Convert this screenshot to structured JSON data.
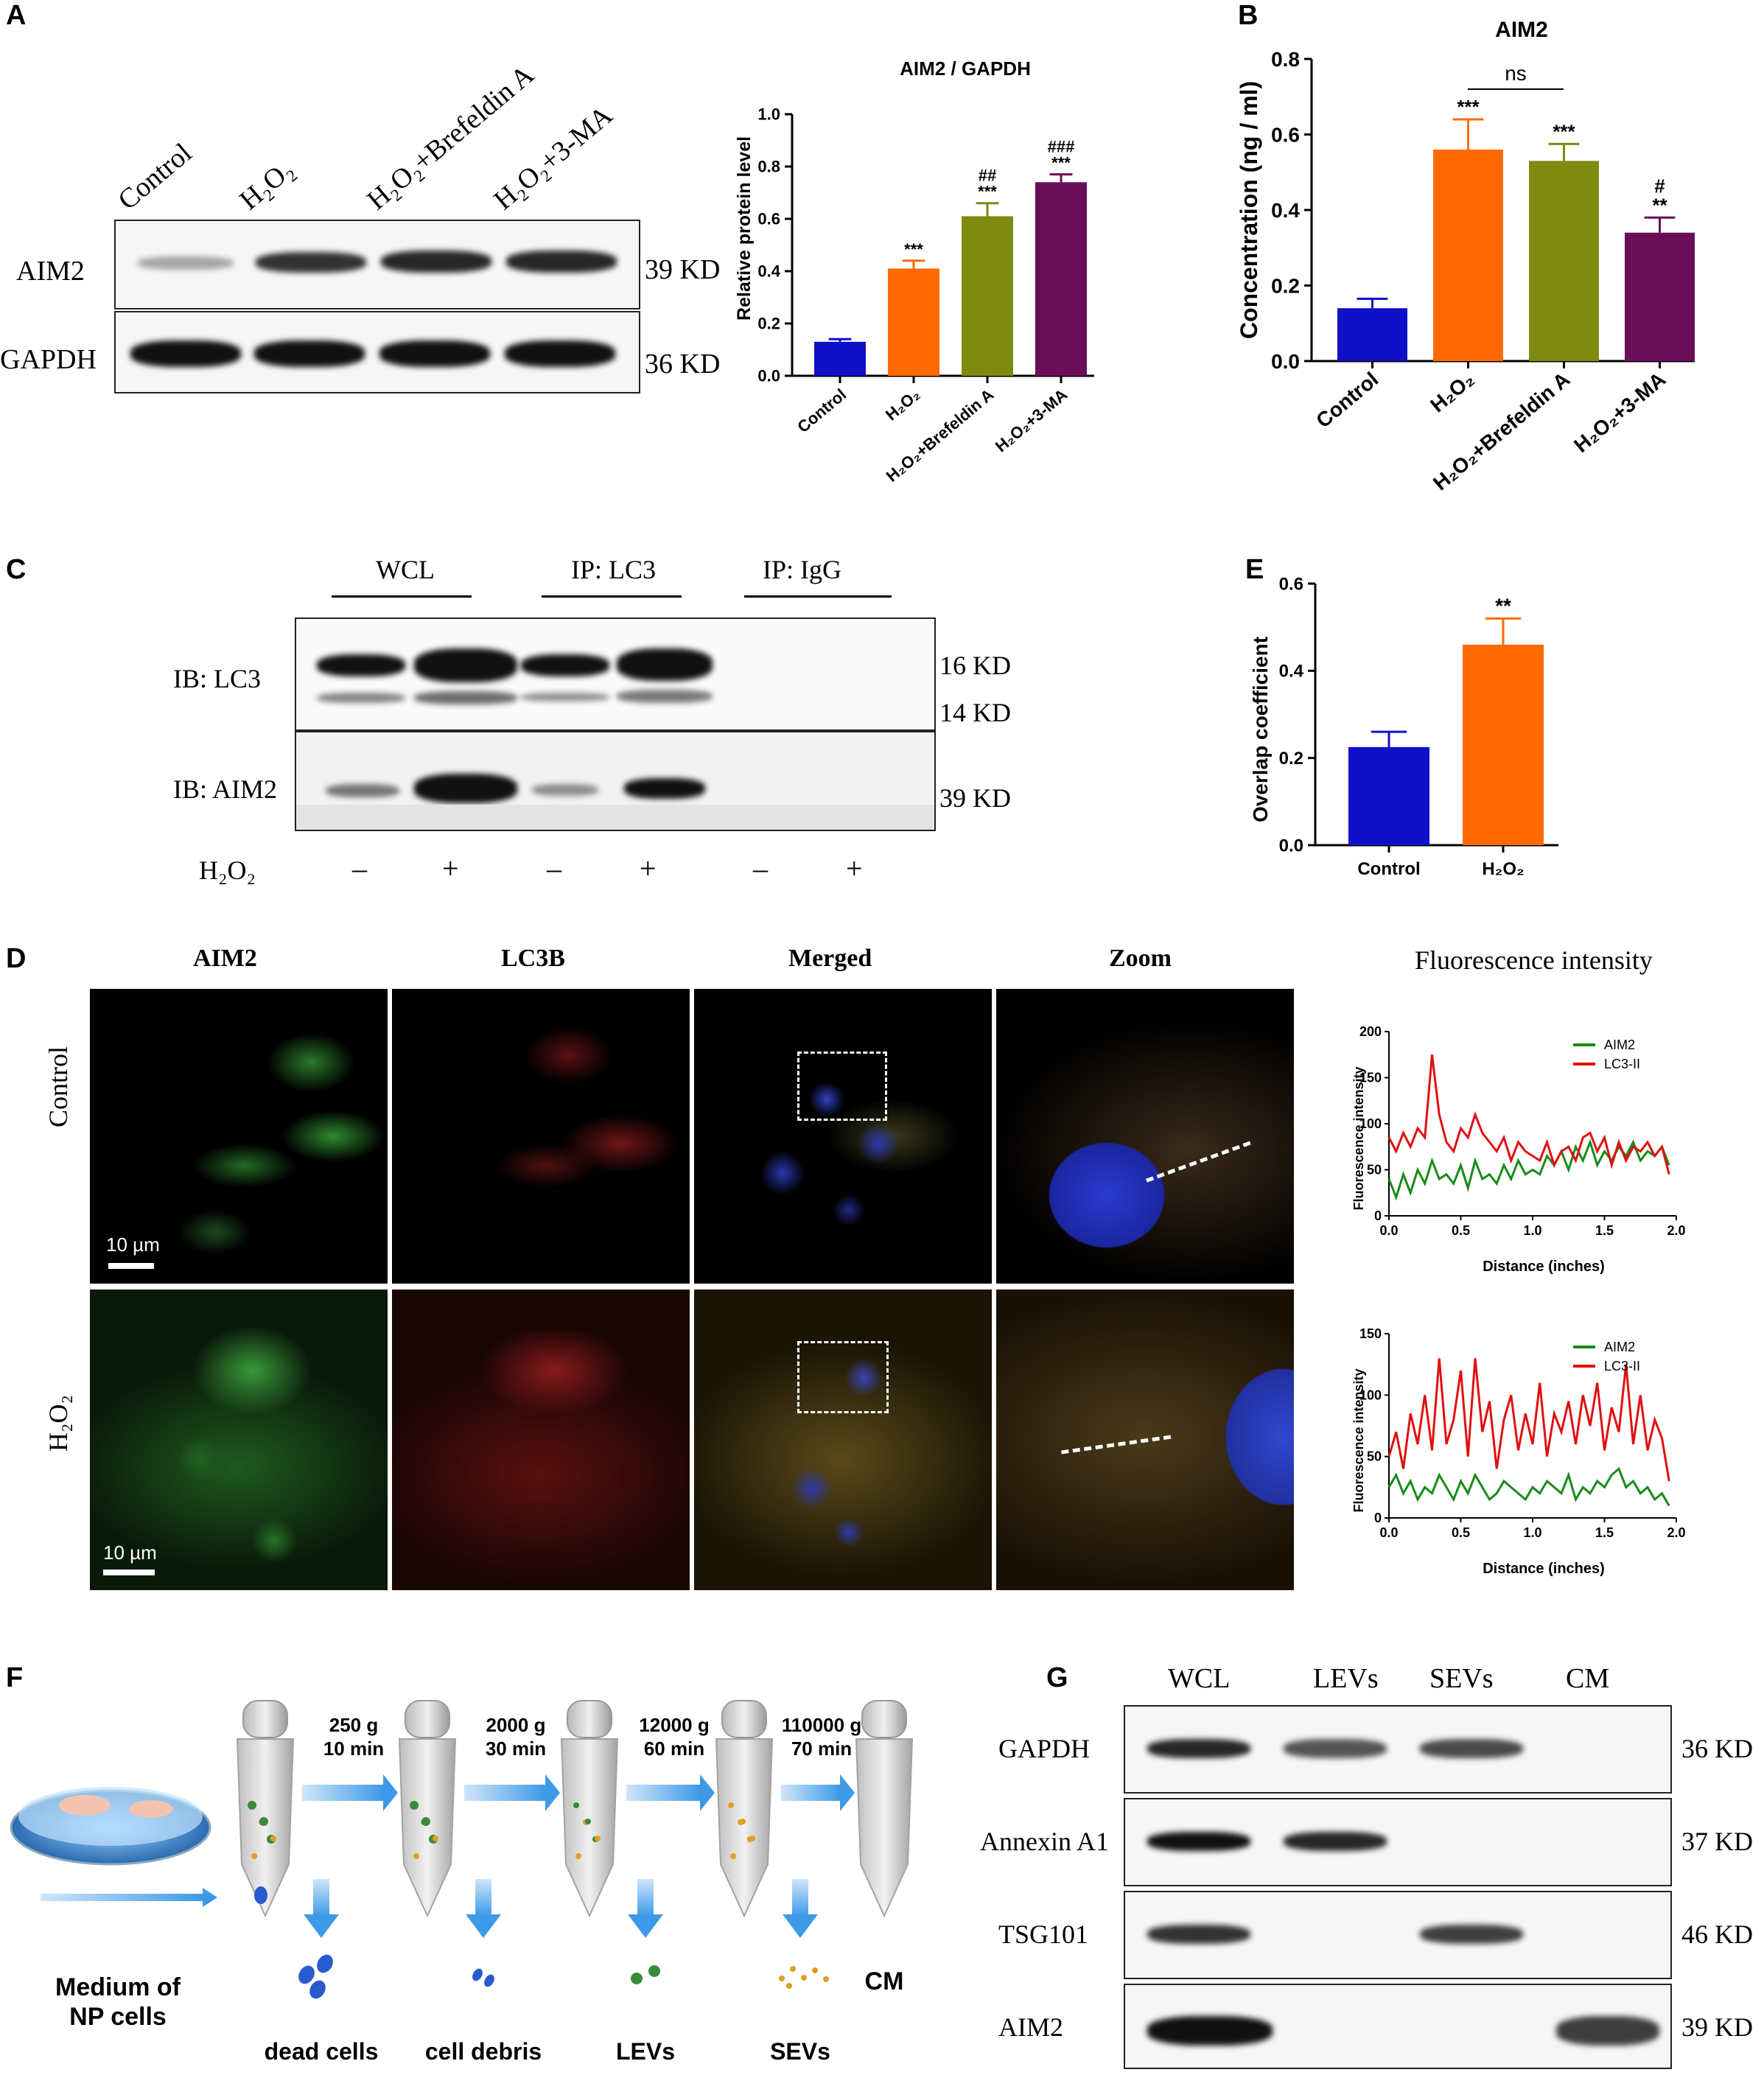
{
  "panels": {
    "A": "A",
    "B": "B",
    "C": "C",
    "D": "D",
    "E": "E",
    "F": "F",
    "G": "G"
  },
  "panelA": {
    "lane_labels": [
      "Control",
      "H₂O₂",
      "H₂O₂+Brefeldin A",
      "H₂O₂+3-MA"
    ],
    "rows": [
      {
        "name": "AIM2",
        "size": "39 KD",
        "intensity": [
          0.35,
          0.85,
          0.9,
          0.9
        ]
      },
      {
        "name": "GAPDH",
        "size": "36 KD",
        "intensity": [
          1,
          1,
          1,
          1
        ]
      }
    ]
  },
  "panelC": {
    "groups": [
      "WCL",
      "IP: LC3",
      "IP: IgG"
    ],
    "rows": [
      {
        "name": "IB: LC3",
        "sizes": [
          "16 KD",
          "14 KD"
        ]
      },
      {
        "name": "IB: AIM2",
        "sizes": [
          "39 KD"
        ]
      }
    ],
    "treatment_label": "H₂O₂",
    "signs": [
      "–",
      "+",
      "–",
      "+",
      "–",
      "+"
    ]
  },
  "panelD": {
    "columns": [
      "AIM2",
      "LC3B",
      "Merged",
      "Zoom"
    ],
    "rows": [
      "Control",
      "H₂O₂"
    ],
    "scalebar": "10 µm",
    "fi_title": "Fluorescence intensity"
  },
  "panelF": {
    "steps": [
      {
        "speed": "250 g",
        "time": "10 min",
        "product": "dead cells"
      },
      {
        "speed": "2000 g",
        "time": "30 min",
        "product": "cell debris"
      },
      {
        "speed": "12000 g",
        "time": "60 min",
        "product": "LEVs"
      },
      {
        "speed": "110000 g",
        "time": "70 min",
        "product": "SEVs"
      }
    ],
    "medium_label": [
      "Medium of",
      "NP cells"
    ],
    "end_label": "CM"
  },
  "panelG": {
    "columns": [
      "WCL",
      "LEVs",
      "SEVs",
      "CM"
    ],
    "rows": [
      {
        "name": "GAPDH",
        "size": "36 KD",
        "intensity": [
          0.9,
          0.7,
          0.75,
          0
        ]
      },
      {
        "name": "Annexin A1",
        "size": "37 KD",
        "intensity": [
          1,
          0.9,
          0,
          0
        ]
      },
      {
        "name": "TSG101",
        "size": "46 KD",
        "intensity": [
          0.85,
          0,
          0.8,
          0
        ]
      },
      {
        "name": "AIM2",
        "size": "39 KD",
        "intensity": [
          1,
          0,
          0,
          0.8
        ]
      }
    ]
  },
  "colors": {
    "control": "#1010c8",
    "h2o2": "#ff6a00",
    "bref": "#7f8a10",
    "ma": "#6a0e5a",
    "aim2_line": "#1a8a1a",
    "lc3_line": "#e01010"
  },
  "chart_data": [
    {
      "type": "bar",
      "title": "AIM2 / GAPDH",
      "ylabel": "Relative protein level",
      "categories": [
        "Control",
        "H₂O₂",
        "H₂O₂+Brefeldin A",
        "H₂O₂+3-MA"
      ],
      "values": [
        0.13,
        0.41,
        0.61,
        0.74
      ],
      "errors": [
        0.01,
        0.03,
        0.05,
        0.03
      ],
      "sig": [
        [
          "",
          ""
        ],
        [
          "***",
          ""
        ],
        [
          "***",
          "##"
        ],
        [
          "***",
          "###"
        ]
      ],
      "ylim": [
        0,
        1.0
      ],
      "yticks": [
        "0.0",
        "0.2",
        "0.4",
        "0.6",
        "0.8",
        "1.0"
      ]
    },
    {
      "type": "bar",
      "title": "AIM2",
      "ylabel": "Concentration (ng / ml)",
      "categories": [
        "Control",
        "H₂O₂",
        "H₂O₂+Brefeldin A",
        "H₂O₂+3-MA"
      ],
      "values": [
        0.14,
        0.56,
        0.53,
        0.34
      ],
      "errors": [
        0.025,
        0.08,
        0.045,
        0.04
      ],
      "sig": [
        [
          "",
          ""
        ],
        [
          "***",
          ""
        ],
        [
          "***",
          ""
        ],
        [
          "**",
          "#"
        ]
      ],
      "bracket": "ns",
      "ylim": [
        0,
        0.8
      ],
      "yticks": [
        "0.0",
        "0.2",
        "0.4",
        "0.6",
        "0.8"
      ]
    },
    {
      "type": "bar",
      "ylabel": "Overlap coefficient",
      "categories": [
        "Control",
        "H₂O₂"
      ],
      "values": [
        0.225,
        0.46
      ],
      "errors": [
        0.035,
        0.06
      ],
      "sig": [
        [
          "",
          ""
        ],
        [
          "**",
          ""
        ]
      ],
      "ylim": [
        0,
        0.6
      ],
      "yticks": [
        "0.0",
        "0.2",
        "0.4",
        "0.6"
      ]
    },
    {
      "type": "line",
      "xlabel": "Distance (inches)",
      "ylabel": "Fluorescence intensity",
      "xlim": [
        0,
        2.0
      ],
      "ylim": [
        0,
        200
      ],
      "xticks": [
        "0.0",
        "0.5",
        "1.0",
        "1.5",
        "2.0"
      ],
      "yticks": [
        "0",
        "50",
        "100",
        "150",
        "200"
      ],
      "series": [
        {
          "name": "AIM2",
          "x": [
            0.0,
            0.05,
            0.1,
            0.15,
            0.2,
            0.25,
            0.3,
            0.35,
            0.4,
            0.45,
            0.5,
            0.55,
            0.6,
            0.65,
            0.7,
            0.75,
            0.8,
            0.85,
            0.9,
            0.95,
            1.0,
            1.05,
            1.1,
            1.15,
            1.2,
            1.25,
            1.3,
            1.35,
            1.4,
            1.45,
            1.5,
            1.55,
            1.6,
            1.65,
            1.7,
            1.75,
            1.8,
            1.85,
            1.9,
            1.95
          ],
          "values": [
            40,
            20,
            45,
            25,
            50,
            35,
            60,
            40,
            45,
            35,
            55,
            30,
            60,
            40,
            45,
            35,
            55,
            40,
            60,
            45,
            50,
            45,
            65,
            55,
            70,
            50,
            75,
            60,
            80,
            55,
            70,
            60,
            75,
            65,
            80,
            60,
            70,
            65,
            75,
            55
          ]
        },
        {
          "name": "LC3-II",
          "x": [
            0.0,
            0.05,
            0.1,
            0.15,
            0.2,
            0.25,
            0.3,
            0.35,
            0.4,
            0.45,
            0.5,
            0.55,
            0.6,
            0.65,
            0.7,
            0.75,
            0.8,
            0.85,
            0.9,
            0.95,
            1.0,
            1.05,
            1.1,
            1.15,
            1.2,
            1.25,
            1.3,
            1.35,
            1.4,
            1.45,
            1.5,
            1.55,
            1.6,
            1.65,
            1.7,
            1.75,
            1.8,
            1.85,
            1.9,
            1.95
          ],
          "values": [
            85,
            70,
            90,
            75,
            95,
            85,
            175,
            110,
            80,
            70,
            95,
            85,
            110,
            90,
            80,
            70,
            85,
            60,
            80,
            70,
            65,
            60,
            80,
            55,
            70,
            75,
            60,
            85,
            90,
            70,
            85,
            55,
            80,
            60,
            75,
            70,
            80,
            65,
            75,
            45
          ]
        }
      ]
    },
    {
      "type": "line",
      "xlabel": "Distance (inches)",
      "ylabel": "Fluorescence intensity",
      "xlim": [
        0,
        2.0
      ],
      "ylim": [
        0,
        150
      ],
      "xticks": [
        "0.0",
        "0.5",
        "1.0",
        "1.5",
        "2.0"
      ],
      "yticks": [
        "0",
        "50",
        "100",
        "150"
      ],
      "series": [
        {
          "name": "AIM2",
          "x": [
            0.0,
            0.05,
            0.1,
            0.15,
            0.2,
            0.25,
            0.3,
            0.35,
            0.4,
            0.45,
            0.5,
            0.55,
            0.6,
            0.65,
            0.7,
            0.75,
            0.8,
            0.85,
            0.9,
            0.95,
            1.0,
            1.05,
            1.1,
            1.15,
            1.2,
            1.25,
            1.3,
            1.35,
            1.4,
            1.45,
            1.5,
            1.55,
            1.6,
            1.65,
            1.7,
            1.75,
            1.8,
            1.85,
            1.9,
            1.95
          ],
          "values": [
            25,
            35,
            20,
            30,
            15,
            25,
            20,
            35,
            25,
            15,
            30,
            20,
            35,
            25,
            15,
            20,
            30,
            25,
            20,
            15,
            25,
            20,
            30,
            25,
            20,
            35,
            15,
            25,
            20,
            30,
            25,
            35,
            40,
            25,
            30,
            20,
            25,
            15,
            20,
            10
          ]
        },
        {
          "name": "LC3-II",
          "x": [
            0.0,
            0.05,
            0.1,
            0.15,
            0.2,
            0.25,
            0.3,
            0.35,
            0.4,
            0.45,
            0.5,
            0.55,
            0.6,
            0.65,
            0.7,
            0.75,
            0.8,
            0.85,
            0.9,
            0.95,
            1.0,
            1.05,
            1.1,
            1.15,
            1.2,
            1.25,
            1.3,
            1.35,
            1.4,
            1.45,
            1.5,
            1.55,
            1.6,
            1.65,
            1.7,
            1.75,
            1.8,
            1.85,
            1.9,
            1.95
          ],
          "values": [
            50,
            70,
            40,
            85,
            60,
            100,
            55,
            130,
            60,
            80,
            120,
            50,
            130,
            70,
            95,
            40,
            80,
            100,
            55,
            85,
            60,
            110,
            50,
            85,
            70,
            95,
            60,
            100,
            75,
            110,
            55,
            90,
            70,
            125,
            60,
            100,
            55,
            80,
            65,
            30
          ]
        }
      ]
    }
  ]
}
